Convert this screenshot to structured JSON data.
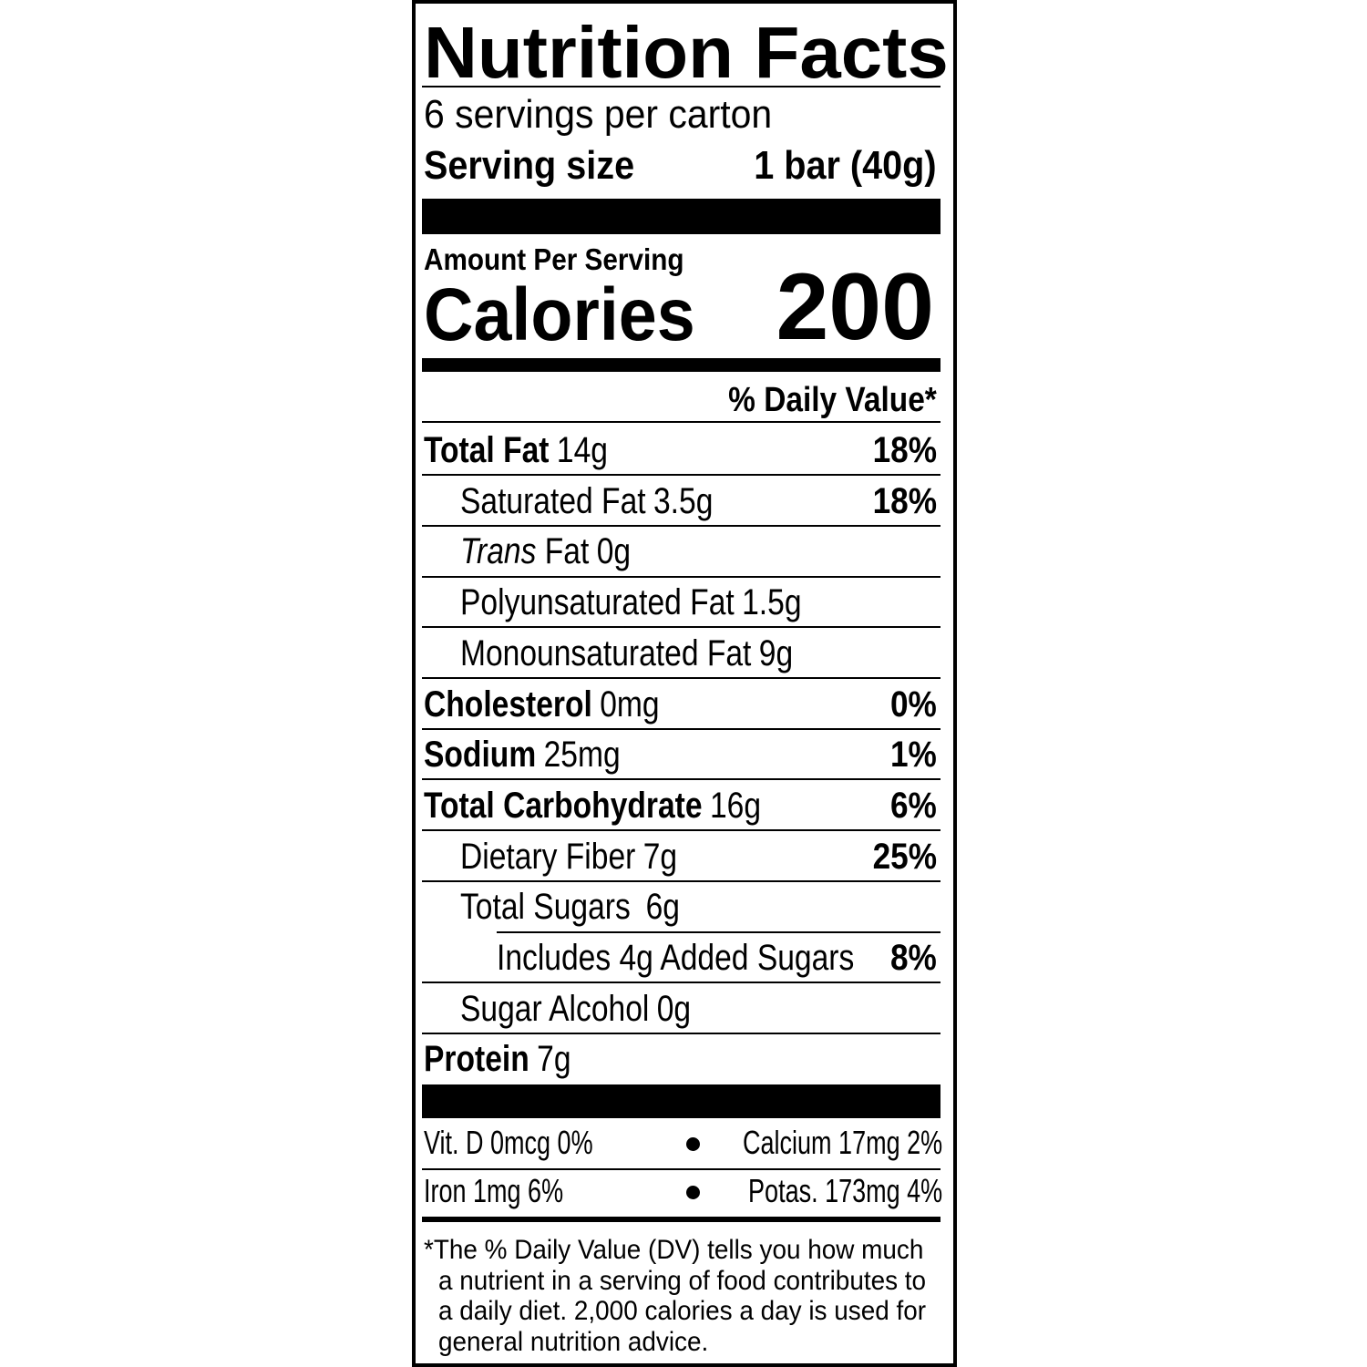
{
  "title": "Nutrition Facts",
  "servings": "6 servings per carton",
  "serving_size": {
    "label": "Serving size",
    "value": "1 bar (40g)"
  },
  "amount_per_serving": "Amount Per Serving",
  "calories": {
    "label": "Calories",
    "value": "200"
  },
  "daily_value_header": "% Daily Value*",
  "nutrients": [
    {
      "name": "Total Fat",
      "amount": "14g",
      "dv": "18%"
    },
    {
      "name": "Saturated Fat",
      "amount": "3.5g",
      "dv": "18%"
    },
    {
      "italic": "Trans",
      "name": "Fat",
      "amount": "0g"
    },
    {
      "name": "Polyunsaturated Fat",
      "amount": "1.5g"
    },
    {
      "name": "Monounsaturated Fat",
      "amount": "9g"
    },
    {
      "name": "Cholesterol",
      "amount": "0mg",
      "dv": "0%"
    },
    {
      "name": "Sodium",
      "amount": "25mg",
      "dv": "1%"
    },
    {
      "name": "Total Carbohydrate",
      "amount": "16g",
      "dv": "6%"
    },
    {
      "name": "Dietary Fiber",
      "amount": "7g",
      "dv": "25%"
    },
    {
      "name": "Total Sugars",
      "amount": "6g"
    },
    {
      "name": "Includes 4g Added Sugars",
      "dv": "8%"
    },
    {
      "name": "Sugar Alcohol",
      "amount": "0g"
    },
    {
      "name": "Protein",
      "amount": "7g"
    }
  ],
  "vitamins": [
    [
      "Vit. D 0mcg 0%",
      "Calcium 17mg 2%"
    ],
    [
      "Iron 1mg 6%",
      "Potas. 173mg 4%"
    ]
  ],
  "footnote": [
    "*The % Daily Value (DV) tells you how much",
    "a nutrient in a serving of food contributes to",
    "a daily diet. 2,000 calories a day is used for",
    "general nutrition advice."
  ]
}
